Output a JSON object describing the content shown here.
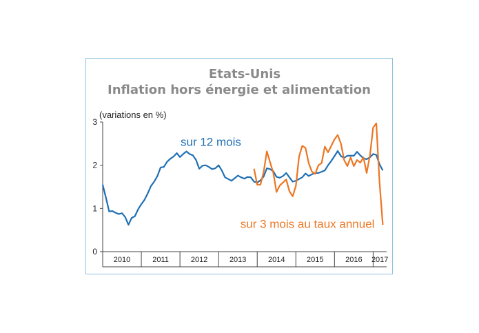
{
  "chart_data": {
    "type": "line",
    "title": "Etats-Unis",
    "subtitle": "Inflation hors énergie et alimentation",
    "ylabel": "(variations en %)",
    "xlabel": "",
    "ylim": [
      0,
      3
    ],
    "yticks": [
      "0",
      "1",
      "2",
      "3"
    ],
    "xlim": [
      2010,
      2017.35
    ],
    "xticks": [
      "2010",
      "2011",
      "2012",
      "2013",
      "2014",
      "2015",
      "2016",
      "2017"
    ],
    "grid": false,
    "legend": "none",
    "series": [
      {
        "name": "sur 12 mois",
        "color": "#1f6fb4",
        "x": [
          2010.0,
          2010.083,
          2010.167,
          2010.25,
          2010.333,
          2010.417,
          2010.5,
          2010.583,
          2010.667,
          2010.75,
          2010.833,
          2010.917,
          2011.0,
          2011.083,
          2011.167,
          2011.25,
          2011.333,
          2011.417,
          2011.5,
          2011.583,
          2011.667,
          2011.75,
          2011.833,
          2011.917,
          2012.0,
          2012.083,
          2012.167,
          2012.25,
          2012.333,
          2012.417,
          2012.5,
          2012.583,
          2012.667,
          2012.75,
          2012.833,
          2012.917,
          2013.0,
          2013.083,
          2013.167,
          2013.25,
          2013.333,
          2013.417,
          2013.5,
          2013.583,
          2013.667,
          2013.75,
          2013.833,
          2013.917,
          2014.0,
          2014.083,
          2014.167,
          2014.25,
          2014.333,
          2014.417,
          2014.5,
          2014.583,
          2014.667,
          2014.75,
          2014.833,
          2014.917,
          2015.0,
          2015.083,
          2015.167,
          2015.25,
          2015.333,
          2015.417,
          2015.5,
          2015.583,
          2015.667,
          2015.75,
          2015.833,
          2015.917,
          2016.0,
          2016.083,
          2016.167,
          2016.25,
          2016.333,
          2016.417,
          2016.5,
          2016.583,
          2016.667,
          2016.75,
          2016.833,
          2016.917,
          2017.0,
          2017.083,
          2017.167,
          2017.25
        ],
        "values": [
          1.55,
          1.25,
          0.93,
          0.94,
          0.9,
          0.87,
          0.89,
          0.8,
          0.62,
          0.78,
          0.82,
          0.98,
          1.1,
          1.2,
          1.35,
          1.52,
          1.62,
          1.75,
          1.95,
          1.96,
          2.08,
          2.15,
          2.2,
          2.28,
          2.19,
          2.26,
          2.32,
          2.26,
          2.23,
          2.12,
          1.92,
          1.99,
          2.0,
          1.96,
          1.91,
          1.93,
          2.0,
          1.88,
          1.72,
          1.68,
          1.64,
          1.7,
          1.76,
          1.72,
          1.69,
          1.73,
          1.72,
          1.62,
          1.6,
          1.65,
          1.74,
          1.93,
          1.91,
          1.86,
          1.73,
          1.71,
          1.75,
          1.82,
          1.72,
          1.62,
          1.64,
          1.68,
          1.72,
          1.81,
          1.75,
          1.79,
          1.82,
          1.82,
          1.85,
          1.88,
          2.0,
          2.1,
          2.21,
          2.33,
          2.21,
          2.17,
          2.22,
          2.22,
          2.22,
          2.31,
          2.23,
          2.16,
          2.14,
          2.18,
          2.26,
          2.24,
          2.02,
          1.88
        ]
      },
      {
        "name": "sur 3 mois au taux annuel",
        "color": "#ec7622",
        "x": [
          2013.917,
          2014.0,
          2014.083,
          2014.167,
          2014.25,
          2014.333,
          2014.417,
          2014.5,
          2014.583,
          2014.667,
          2014.75,
          2014.833,
          2014.917,
          2015.0,
          2015.083,
          2015.167,
          2015.25,
          2015.333,
          2015.417,
          2015.5,
          2015.583,
          2015.667,
          2015.75,
          2015.833,
          2015.917,
          2016.0,
          2016.083,
          2016.167,
          2016.25,
          2016.333,
          2016.417,
          2016.5,
          2016.583,
          2016.667,
          2016.75,
          2016.833,
          2016.917,
          2017.0,
          2017.083,
          2017.167,
          2017.25
        ],
        "values": [
          1.92,
          1.55,
          1.55,
          1.85,
          2.32,
          2.07,
          1.82,
          1.38,
          1.53,
          1.6,
          1.67,
          1.4,
          1.28,
          1.52,
          2.2,
          2.45,
          2.4,
          2.05,
          1.85,
          1.8,
          2.0,
          2.05,
          2.43,
          2.3,
          2.45,
          2.6,
          2.7,
          2.5,
          2.12,
          1.98,
          2.18,
          1.98,
          2.12,
          2.06,
          2.18,
          1.82,
          2.22,
          2.87,
          2.97,
          1.6,
          0.62
        ]
      }
    ],
    "annotations": [
      {
        "text": "sur 12 mois",
        "series": "sur 12 mois",
        "color": "#1f6fb4",
        "x": 2012.8,
        "y": 2.45
      },
      {
        "text": "sur 3 mois au taux annuel",
        "series": "sur 3 mois au taux annuel",
        "color": "#ec7622",
        "x": 2015.3,
        "y": 0.55
      }
    ]
  }
}
